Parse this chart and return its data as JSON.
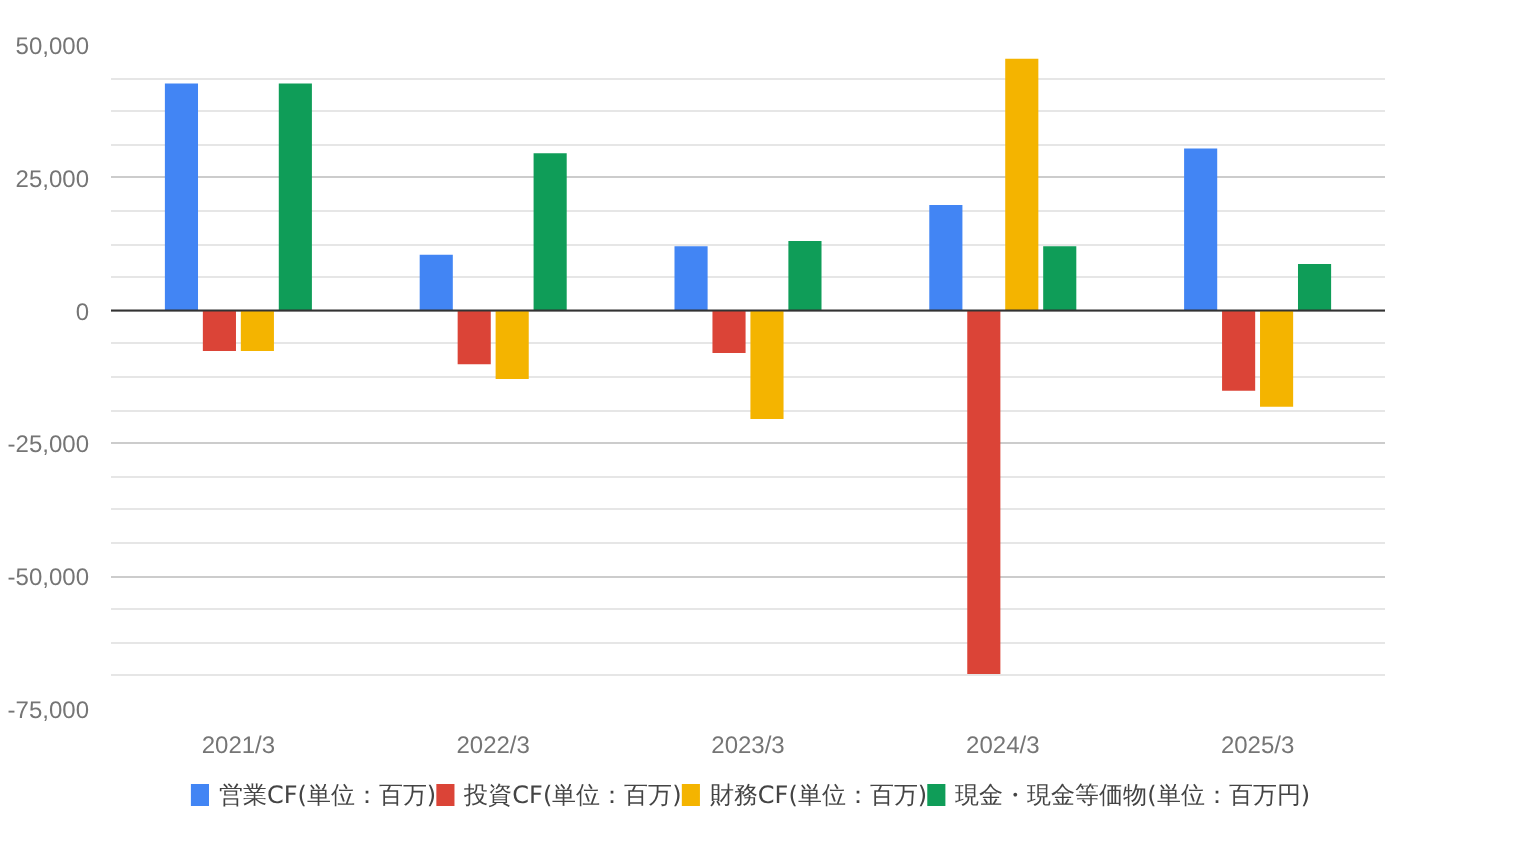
{
  "chart_data": {
    "type": "bar",
    "categories": [
      "2021/3",
      "2022/3",
      "2023/3",
      "2024/3",
      "2025/3"
    ],
    "series": [
      {
        "name": "営業CF(単位：百万)",
        "color": "#4285f4",
        "values": [
          42750,
          10500,
          12100,
          19900,
          30500
        ]
      },
      {
        "name": "投資CF(単位：百万)",
        "color": "#db4437",
        "values": [
          -7600,
          -10100,
          -8000,
          -68400,
          -15100
        ]
      },
      {
        "name": "財務CF(単位：百万)",
        "color": "#f4b400",
        "values": [
          -7600,
          -12900,
          -20400,
          47400,
          -18100
        ]
      },
      {
        "name": "現金・現金等価物(単位：百万円)",
        "color": "#0f9d58",
        "values": [
          42750,
          29600,
          13100,
          12100,
          8750
        ]
      }
    ],
    "ylim": [
      -75000,
      50000
    ],
    "yticks": [
      {
        "value": -75000,
        "label": "-75,000"
      },
      {
        "value": -50000,
        "label": "-50,000"
      },
      {
        "value": -25000,
        "label": "-25,000"
      },
      0,
      {
        "value": 25000,
        "label": "25,000"
      },
      {
        "value": 50000,
        "label": "50,000"
      }
    ],
    "grid": "y",
    "legend": "bottom"
  }
}
